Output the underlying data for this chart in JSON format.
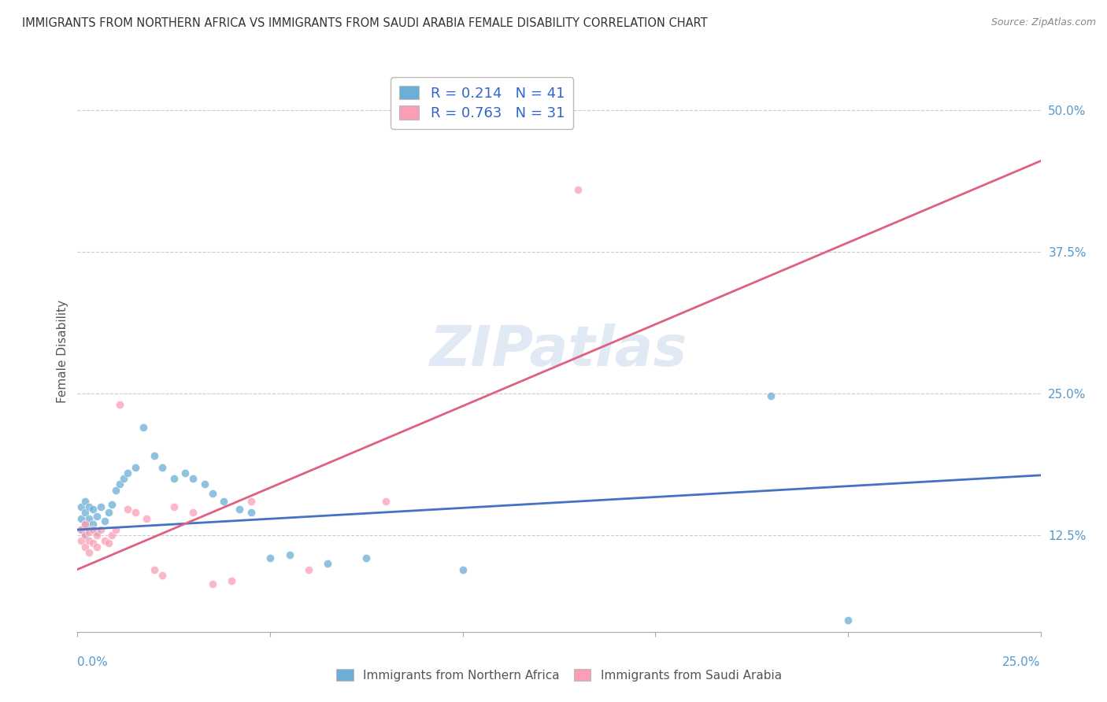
{
  "title": "IMMIGRANTS FROM NORTHERN AFRICA VS IMMIGRANTS FROM SAUDI ARABIA FEMALE DISABILITY CORRELATION CHART",
  "source": "Source: ZipAtlas.com",
  "ylabel": "Female Disability",
  "yticks": [
    "12.5%",
    "25.0%",
    "37.5%",
    "50.0%"
  ],
  "ytick_vals": [
    0.125,
    0.25,
    0.375,
    0.5
  ],
  "xlim": [
    0.0,
    0.25
  ],
  "ylim": [
    0.04,
    0.535
  ],
  "legend_label1": "Immigrants from Northern Africa",
  "legend_label2": "Immigrants from Saudi Arabia",
  "R1": 0.214,
  "N1": 41,
  "R2": 0.763,
  "N2": 31,
  "color1": "#6baed6",
  "color2": "#fa9fb5",
  "line_color1": "#4472c4",
  "line_color2": "#e06080",
  "watermark": "ZIPatlas",
  "blue_scatter_x": [
    0.001,
    0.001,
    0.001,
    0.002,
    0.002,
    0.002,
    0.002,
    0.003,
    0.003,
    0.003,
    0.004,
    0.004,
    0.005,
    0.005,
    0.006,
    0.007,
    0.008,
    0.009,
    0.01,
    0.011,
    0.012,
    0.013,
    0.015,
    0.017,
    0.02,
    0.022,
    0.025,
    0.028,
    0.03,
    0.033,
    0.035,
    0.038,
    0.042,
    0.045,
    0.05,
    0.055,
    0.065,
    0.075,
    0.1,
    0.18,
    0.2
  ],
  "blue_scatter_y": [
    0.13,
    0.14,
    0.15,
    0.125,
    0.135,
    0.145,
    0.155,
    0.13,
    0.14,
    0.15,
    0.135,
    0.148,
    0.128,
    0.142,
    0.15,
    0.138,
    0.145,
    0.152,
    0.165,
    0.17,
    0.175,
    0.18,
    0.185,
    0.22,
    0.195,
    0.185,
    0.175,
    0.18,
    0.175,
    0.17,
    0.162,
    0.155,
    0.148,
    0.145,
    0.105,
    0.108,
    0.1,
    0.105,
    0.095,
    0.248,
    0.05
  ],
  "pink_scatter_x": [
    0.001,
    0.001,
    0.002,
    0.002,
    0.002,
    0.003,
    0.003,
    0.003,
    0.004,
    0.004,
    0.005,
    0.005,
    0.006,
    0.007,
    0.008,
    0.009,
    0.01,
    0.011,
    0.013,
    0.015,
    0.018,
    0.02,
    0.022,
    0.025,
    0.03,
    0.035,
    0.04,
    0.045,
    0.06,
    0.08,
    0.13
  ],
  "pink_scatter_y": [
    0.12,
    0.13,
    0.115,
    0.125,
    0.135,
    0.11,
    0.12,
    0.128,
    0.118,
    0.13,
    0.115,
    0.125,
    0.13,
    0.12,
    0.118,
    0.125,
    0.13,
    0.24,
    0.148,
    0.145,
    0.14,
    0.095,
    0.09,
    0.15,
    0.145,
    0.082,
    0.085,
    0.155,
    0.095,
    0.155,
    0.43
  ],
  "blue_line_x": [
    0.0,
    0.25
  ],
  "blue_line_y": [
    0.13,
    0.178
  ],
  "pink_line_x": [
    0.0,
    0.25
  ],
  "pink_line_y": [
    0.095,
    0.455
  ]
}
